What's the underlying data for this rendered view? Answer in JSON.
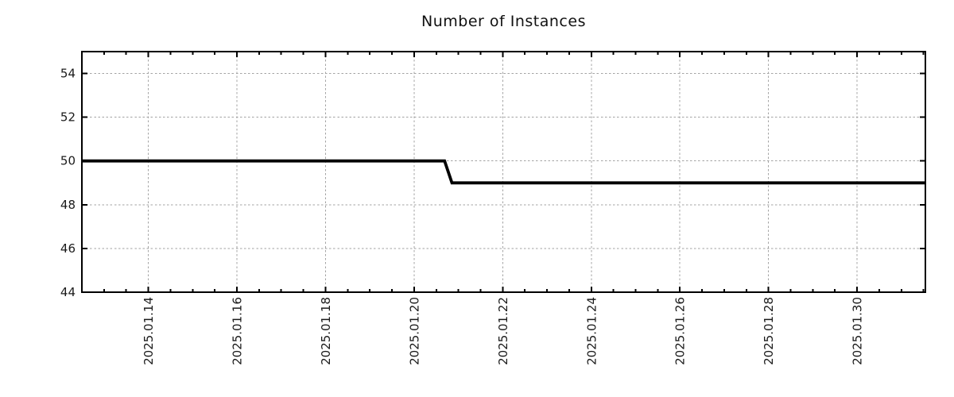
{
  "page": {
    "background_color": "#ffffff"
  },
  "chart_data": {
    "type": "line",
    "title": "Number of Instances",
    "xlabel": "",
    "ylabel": "",
    "legend": "none",
    "grid": {
      "show": true,
      "color": "#a3a3a3",
      "dash": [
        2.5,
        2.6
      ]
    },
    "axis_color": "#000000",
    "x_range": [
      "2025-01-12T12:00",
      "2025-01-31T13:00"
    ],
    "y_range": [
      44,
      55
    ],
    "y_ticks": [
      44,
      46,
      48,
      50,
      52,
      54
    ],
    "x_ticks": [
      {
        "date": "2025-01-14T00:00",
        "label": "2025.01.14"
      },
      {
        "date": "2025-01-16T00:00",
        "label": "2025.01.16"
      },
      {
        "date": "2025-01-18T00:00",
        "label": "2025.01.18"
      },
      {
        "date": "2025-01-20T00:00",
        "label": "2025.01.20"
      },
      {
        "date": "2025-01-22T00:00",
        "label": "2025.01.22"
      },
      {
        "date": "2025-01-24T00:00",
        "label": "2025.01.24"
      },
      {
        "date": "2025-01-26T00:00",
        "label": "2025.01.26"
      },
      {
        "date": "2025-01-28T00:00",
        "label": "2025.01.28"
      },
      {
        "date": "2025-01-30T00:00",
        "label": "2025.01.30"
      }
    ],
    "x_minor_interval_hours": 12,
    "series": [
      {
        "name": "instances",
        "color": "#000000",
        "line_width": 3.8,
        "points": [
          [
            "2025-01-12T12:00",
            50
          ],
          [
            "2025-01-20T16:30",
            50
          ],
          [
            "2025-01-20T20:30",
            49
          ],
          [
            "2025-01-31T13:00",
            49
          ]
        ]
      }
    ]
  }
}
